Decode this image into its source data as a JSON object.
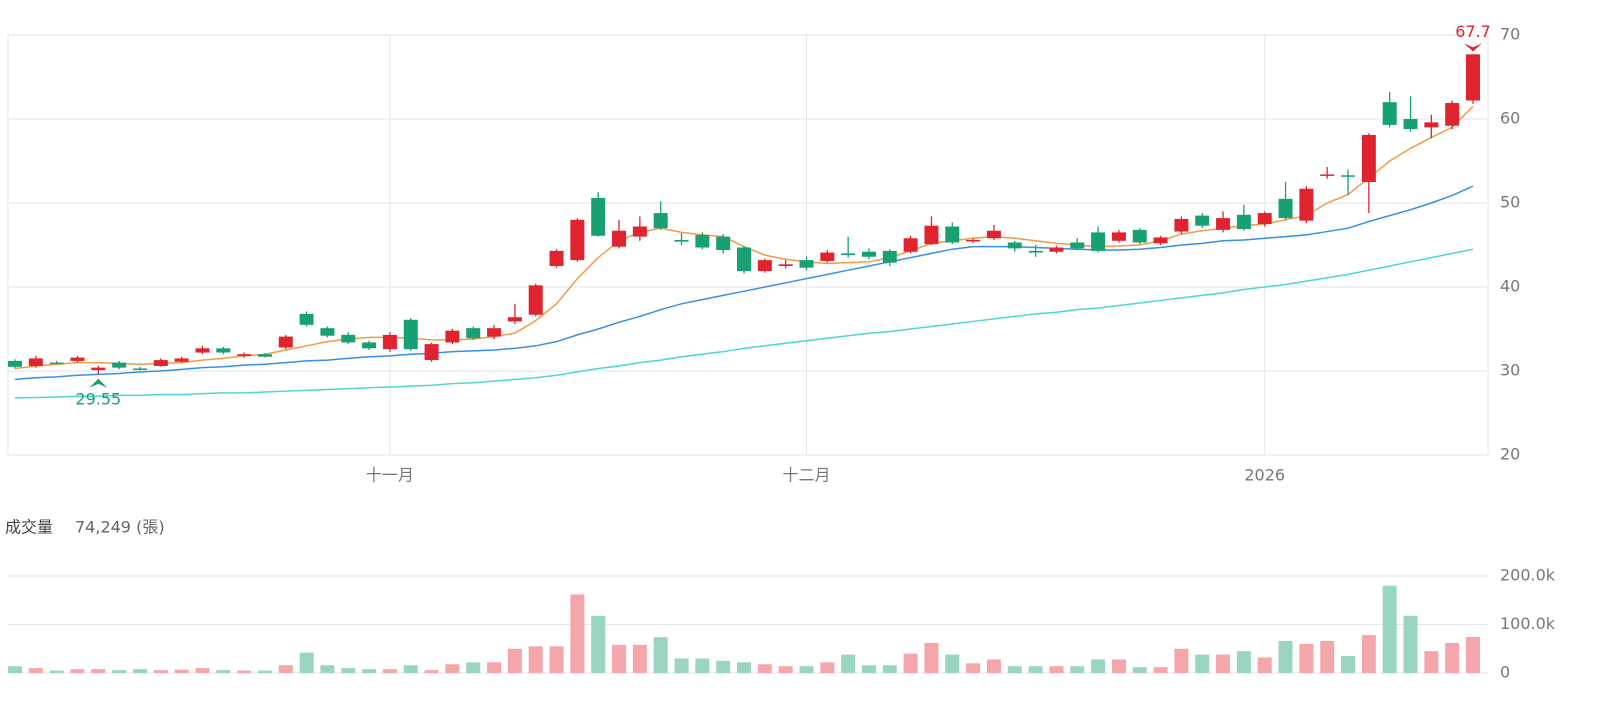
{
  "chart_data": [
    {
      "type": "candlestick",
      "categories": [
        null,
        null,
        null,
        null,
        null,
        null,
        null,
        null,
        null,
        null,
        null,
        null,
        null,
        null,
        null,
        null,
        null,
        null,
        "十一月",
        null,
        null,
        null,
        null,
        null,
        null,
        null,
        null,
        null,
        null,
        null,
        null,
        null,
        null,
        null,
        null,
        null,
        null,
        null,
        "十二月",
        null,
        null,
        null,
        null,
        null,
        null,
        null,
        null,
        null,
        null,
        null,
        null,
        null,
        null,
        null,
        null,
        null,
        null,
        null,
        null,
        null,
        "2026",
        null,
        null,
        null,
        null,
        null,
        null,
        null,
        null,
        null,
        null
      ],
      "open": [
        31.2,
        30.6,
        31,
        31.2,
        30.1,
        31,
        30.3,
        30.6,
        31.1,
        32.2,
        32.7,
        31.8,
        32,
        32.8,
        36.8,
        35.1,
        34.3,
        33.4,
        32.6,
        36.1,
        31.3,
        33.4,
        35.1,
        34.1,
        35.9,
        36.7,
        42.5,
        43.2,
        50.6,
        44.8,
        46,
        48.8,
        45.6,
        46.2,
        46,
        44.7,
        41.9,
        42.5,
        43.2,
        43.1,
        44,
        44.2,
        44.3,
        44.2,
        45.1,
        47.2,
        45.5,
        45.8,
        45.3,
        44.3,
        44.2,
        45.3,
        46.5,
        45.5,
        46.8,
        45.2,
        46.6,
        48.5,
        46.8,
        48.6,
        47.5,
        50.5,
        47.9,
        53.3,
        53.3,
        52.5,
        62,
        60,
        59,
        59.2,
        62.2
      ],
      "high": [
        31.4,
        31.8,
        31.2,
        31.8,
        30.6,
        31.2,
        30.5,
        31.5,
        31.7,
        33,
        32.9,
        32.2,
        32.1,
        34.3,
        37.1,
        35.3,
        34.6,
        33.6,
        34.6,
        36.3,
        33.4,
        35,
        35.3,
        35.5,
        38,
        40.4,
        44.5,
        48.2,
        51.3,
        48,
        48.4,
        50.2,
        46.4,
        46.5,
        46.3,
        44.9,
        43.4,
        43.2,
        43.6,
        44.4,
        46,
        44.6,
        44.5,
        46.1,
        48.4,
        47.7,
        45.8,
        47.4,
        45.5,
        45,
        44.9,
        45.8,
        47.2,
        46.8,
        47,
        46.1,
        48.4,
        48.8,
        49,
        49.8,
        49,
        52.5,
        52,
        54.3,
        54,
        58.3,
        63.2,
        62.7,
        60.5,
        62.2,
        67.7
      ],
      "low": [
        30.3,
        30.4,
        30.8,
        31,
        29.55,
        30.2,
        30.1,
        30.5,
        31,
        32,
        32,
        31.6,
        31.6,
        32.6,
        35.3,
        34,
        33.2,
        32.5,
        32.3,
        32.4,
        31.1,
        33.2,
        33.7,
        33.8,
        35.6,
        36.5,
        42.3,
        43,
        46,
        44.6,
        45.5,
        46.8,
        45,
        44.5,
        44,
        41.6,
        41.7,
        42.2,
        42,
        42.9,
        43.5,
        43.3,
        42.5,
        44,
        45,
        45.1,
        45.2,
        45.6,
        44.2,
        43.6,
        44,
        44.4,
        44.1,
        45.3,
        45.1,
        45,
        46.3,
        47,
        46.5,
        46.7,
        47.2,
        48,
        47.6,
        52.9,
        51,
        48.8,
        59,
        58.5,
        57.7,
        58.8,
        61.8
      ],
      "close": [
        30.5,
        31.5,
        30.9,
        31.6,
        30.4,
        30.4,
        30.2,
        31.3,
        31.5,
        32.7,
        32.2,
        32,
        31.7,
        34.1,
        35.5,
        34.2,
        33.4,
        32.7,
        34.3,
        32.6,
        33.2,
        34.8,
        33.9,
        35.1,
        36.4,
        40.2,
        44.3,
        48,
        46.1,
        46.7,
        47.2,
        47,
        45.4,
        44.7,
        44.4,
        41.9,
        43.2,
        42.7,
        42.3,
        44.1,
        43.8,
        43.6,
        42.9,
        45.8,
        47.3,
        45.3,
        45.6,
        46.7,
        44.6,
        44.1,
        44.7,
        44.6,
        44.3,
        46.5,
        45.3,
        45.9,
        48.1,
        47.3,
        48.2,
        46.9,
        48.8,
        48.2,
        51.7,
        53.4,
        53.2,
        58.1,
        59.3,
        58.8,
        59.6,
        61.9,
        67.7
      ],
      "series": [
        {
          "color": "#f29a48",
          "values": [
            30.3,
            30.6,
            30.8,
            31,
            31,
            30.9,
            30.8,
            30.9,
            31,
            31.3,
            31.5,
            31.8,
            32,
            32.5,
            33,
            33.5,
            33.8,
            34,
            34,
            33.9,
            33.7,
            33.7,
            33.8,
            34.1,
            34.5,
            36,
            38,
            41,
            43.5,
            45.5,
            46.5,
            47,
            46.5,
            46.2,
            46,
            44.8,
            43.8,
            43.3,
            43,
            42.8,
            42.9,
            43,
            43.5,
            44.3,
            45.2,
            45.5,
            45.8,
            46,
            45.8,
            45.5,
            45.2,
            45,
            44.8,
            44.9,
            45,
            45.5,
            46.3,
            46.7,
            47,
            47.3,
            47.5,
            48,
            48.5,
            50,
            51,
            53,
            55,
            56.5,
            57.8,
            59,
            61.5
          ]
        },
        {
          "color": "#3b8fe0",
          "values": [
            29,
            29.2,
            29.3,
            29.5,
            29.6,
            29.7,
            29.9,
            30,
            30.2,
            30.4,
            30.5,
            30.7,
            30.8,
            31,
            31.2,
            31.3,
            31.5,
            31.7,
            31.8,
            32,
            32.1,
            32.3,
            32.4,
            32.5,
            32.7,
            33,
            33.5,
            34.3,
            35,
            35.8,
            36.5,
            37.3,
            38,
            38.5,
            39,
            39.5,
            40,
            40.5,
            41,
            41.5,
            42,
            42.5,
            43,
            43.5,
            44,
            44.5,
            44.8,
            44.8,
            44.8,
            44.7,
            44.6,
            44.5,
            44.4,
            44.4,
            44.5,
            44.7,
            45,
            45.2,
            45.5,
            45.6,
            45.8,
            46,
            46.2,
            46.6,
            47,
            47.8,
            48.5,
            49.2,
            50,
            50.9,
            52
          ]
        },
        {
          "color": "#4fd6d0",
          "values": [
            26.8,
            26.85,
            26.9,
            27,
            27,
            27.1,
            27.1,
            27.2,
            27.2,
            27.3,
            27.4,
            27.4,
            27.5,
            27.6,
            27.7,
            27.8,
            27.9,
            28,
            28.1,
            28.2,
            28.3,
            28.5,
            28.6,
            28.8,
            29,
            29.2,
            29.5,
            29.9,
            30.3,
            30.6,
            31,
            31.3,
            31.7,
            32,
            32.3,
            32.7,
            33,
            33.3,
            33.6,
            33.9,
            34.2,
            34.5,
            34.7,
            35,
            35.3,
            35.6,
            35.9,
            36.2,
            36.5,
            36.8,
            37,
            37.3,
            37.5,
            37.8,
            38.1,
            38.4,
            38.7,
            39,
            39.3,
            39.7,
            40,
            40.3,
            40.7,
            41.1,
            41.5,
            42,
            42.5,
            43,
            43.5,
            44,
            44.5
          ]
        }
      ],
      "up_color": "#e0242f",
      "down_color": "#17a074",
      "ylim": [
        20,
        70
      ],
      "yticks": [
        20,
        30,
        40,
        50,
        60,
        70
      ],
      "grid": true
    },
    {
      "type": "bar",
      "title": "成交量",
      "subtitle": "74,249 (張)",
      "values": [
        14000,
        10000,
        5000,
        8000,
        8000,
        6000,
        8000,
        6000,
        7000,
        10000,
        6000,
        5000,
        5000,
        16000,
        42000,
        16000,
        10000,
        8000,
        8000,
        16000,
        6000,
        18000,
        22000,
        22000,
        50000,
        55000,
        55000,
        162000,
        118000,
        58000,
        58000,
        74000,
        30000,
        30000,
        25000,
        22000,
        18000,
        14000,
        14000,
        22000,
        38000,
        16000,
        16000,
        40000,
        62000,
        38000,
        20000,
        28000,
        14000,
        14000,
        14000,
        14000,
        28000,
        28000,
        12000,
        12000,
        50000,
        38000,
        38000,
        45000,
        32000,
        66000,
        60000,
        66000,
        35000,
        78000,
        180000,
        118000,
        45000,
        62000,
        74249
      ],
      "up_color": "#f4a6aa",
      "down_color": "#9ad6bf",
      "ylim": [
        0,
        200000
      ],
      "yticks": [
        0,
        {
          "value": 100000,
          "label": "100.0k"
        },
        {
          "value": 200000,
          "label": "200.0k"
        }
      ],
      "grid": true
    }
  ]
}
